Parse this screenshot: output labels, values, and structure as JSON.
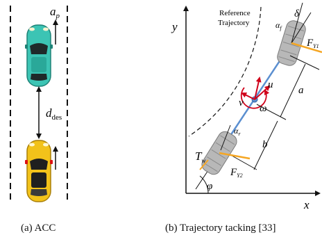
{
  "panel_a": {
    "vehicle_top_label": "a",
    "vehicle_top_label_sub": "p",
    "gap_label": "d",
    "gap_label_sub": "des",
    "caption": "(a) ACC",
    "colors": {
      "lead_car": "#3cc4b4",
      "follow_car": "#f2c21a",
      "lane": "#111111"
    }
  },
  "panel_b": {
    "axis_y": "y",
    "axis_x": "x",
    "reference_line1": "Reference",
    "reference_line2": "Trajectory",
    "delta": "δ",
    "alpha_f": "α",
    "alpha_f_sub": "f",
    "F_Y1": "F",
    "F_Y1_sub": "Y1",
    "u": "u",
    "v": "v",
    "omega": "ω",
    "a": "a",
    "b": "b",
    "alpha_r": "α",
    "alpha_r_sub": "r",
    "T_w": "T",
    "T_w_sub": "w",
    "F_Y2": "F",
    "F_Y2_sub": "Y2",
    "phi": "φ",
    "caption": "(b) Trajectory tacking [33]",
    "colors": {
      "body_axis": "#5b8fd0",
      "force": "#f5a623",
      "velocity": "#d0021b",
      "tire": "#b8b8b8"
    }
  }
}
